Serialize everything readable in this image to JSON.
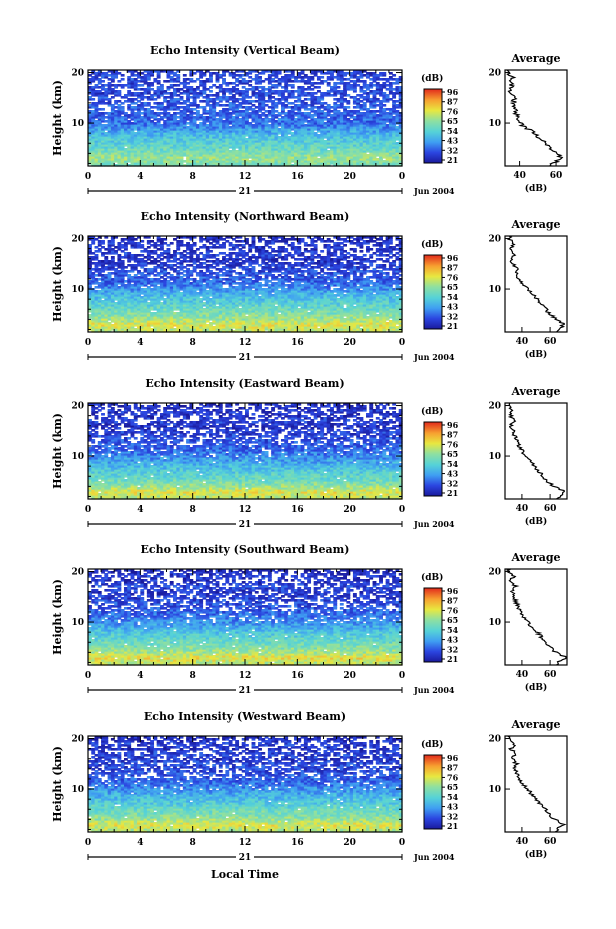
{
  "chart_data": [
    {
      "type": "heatmap",
      "title": "Echo Intensity (Vertical Beam)",
      "ylabel": "Height (km)",
      "x_ticks": [
        "0",
        "4",
        "8",
        "12",
        "16",
        "20",
        "0"
      ],
      "y_ticks": [
        "20",
        "10"
      ],
      "xlim": [
        0,
        24
      ],
      "ylim": [
        1.5,
        20.5
      ],
      "date_day": "21",
      "date_month_year": "Jun 2004",
      "colorbar": {
        "label": "(dB)",
        "ticks": [
          "96",
          "87",
          "76",
          "65",
          "54",
          "43",
          "32",
          "21"
        ],
        "range": [
          21,
          96
        ]
      },
      "profile": {
        "title": "Average",
        "xlabel": "(dB)",
        "x_ticks": [
          "40",
          "60"
        ],
        "xlim": [
          32,
          66
        ],
        "y_ticks": [
          "20",
          "10"
        ],
        "heights": [
          2,
          3,
          4,
          5,
          6,
          7,
          8,
          9,
          10,
          11,
          12,
          13,
          14,
          15,
          16,
          17,
          18,
          19,
          20
        ],
        "values": [
          58,
          63,
          60,
          56,
          54,
          51,
          48,
          44,
          40,
          39,
          38,
          38,
          37,
          37,
          35,
          36,
          35,
          36,
          34
        ]
      }
    },
    {
      "type": "heatmap",
      "title": "Echo Intensity (Northward Beam)",
      "ylabel": "Height (km)",
      "x_ticks": [
        "0",
        "4",
        "8",
        "12",
        "16",
        "20",
        "0"
      ],
      "y_ticks": [
        "20",
        "10"
      ],
      "xlim": [
        0,
        24
      ],
      "ylim": [
        1.5,
        20.5
      ],
      "date_day": "21",
      "date_month_year": "Jun 2004",
      "colorbar": {
        "label": "(dB)",
        "ticks": [
          "96",
          "87",
          "76",
          "65",
          "54",
          "43",
          "32",
          "21"
        ],
        "range": [
          21,
          96
        ]
      },
      "profile": {
        "title": "Average",
        "xlabel": "(dB)",
        "x_ticks": [
          "40",
          "60"
        ],
        "xlim": [
          28,
          72
        ],
        "y_ticks": [
          "20",
          "10"
        ],
        "heights": [
          2,
          3,
          4,
          5,
          6,
          7,
          8,
          9,
          10,
          11,
          12,
          13,
          14,
          15,
          16,
          17,
          18,
          19,
          20
        ],
        "values": [
          66,
          70,
          64,
          60,
          57,
          54,
          51,
          48,
          44,
          40,
          38,
          37,
          36,
          34,
          32,
          35,
          32,
          34,
          31
        ]
      }
    },
    {
      "type": "heatmap",
      "title": "Echo Intensity (Eastward Beam)",
      "ylabel": "Height (km)",
      "x_ticks": [
        "0",
        "4",
        "8",
        "12",
        "16",
        "20",
        "0"
      ],
      "y_ticks": [
        "20",
        "10"
      ],
      "xlim": [
        0,
        24
      ],
      "ylim": [
        1.5,
        20.5
      ],
      "date_day": "21",
      "date_month_year": "Jun 2004",
      "colorbar": {
        "label": "(dB)",
        "ticks": [
          "96",
          "87",
          "76",
          "65",
          "54",
          "43",
          "32",
          "21"
        ],
        "range": [
          21,
          96
        ]
      },
      "profile": {
        "title": "Average",
        "xlabel": "(dB)",
        "x_ticks": [
          "40",
          "60"
        ],
        "xlim": [
          28,
          72
        ],
        "y_ticks": [
          "20",
          "10"
        ],
        "heights": [
          2,
          3,
          4,
          5,
          6,
          7,
          8,
          9,
          10,
          11,
          12,
          13,
          14,
          15,
          16,
          17,
          18,
          19,
          20
        ],
        "values": [
          66,
          70,
          63,
          58,
          55,
          52,
          49,
          46,
          43,
          40,
          38,
          37,
          35,
          34,
          32,
          35,
          32,
          33,
          31
        ]
      }
    },
    {
      "type": "heatmap",
      "title": "Echo Intensity (Southward Beam)",
      "ylabel": "Height (km)",
      "x_ticks": [
        "0",
        "4",
        "8",
        "12",
        "16",
        "20",
        "0"
      ],
      "y_ticks": [
        "20",
        "10"
      ],
      "xlim": [
        0,
        24
      ],
      "ylim": [
        1.5,
        20.5
      ],
      "date_day": "21",
      "date_month_year": "Jun 2004",
      "colorbar": {
        "label": "(dB)",
        "ticks": [
          "96",
          "87",
          "76",
          "65",
          "54",
          "43",
          "32",
          "21"
        ],
        "range": [
          21,
          96
        ]
      },
      "profile": {
        "title": "Average",
        "xlabel": "(dB)",
        "x_ticks": [
          "40",
          "60"
        ],
        "xlim": [
          28,
          72
        ],
        "y_ticks": [
          "20",
          "10"
        ],
        "heights": [
          2,
          3,
          4,
          5,
          6,
          7,
          8,
          9,
          10,
          11,
          12,
          13,
          14,
          15,
          16,
          17,
          18,
          19,
          20
        ],
        "values": [
          66,
          71,
          64,
          60,
          57,
          54,
          51,
          47,
          44,
          41,
          39,
          37,
          36,
          34,
          33,
          36,
          32,
          34,
          31
        ]
      }
    },
    {
      "type": "heatmap",
      "title": "Echo Intensity (Westward Beam)",
      "ylabel": "Height (km)",
      "xlabel": "Local Time",
      "x_ticks": [
        "0",
        "4",
        "8",
        "12",
        "16",
        "20",
        "0"
      ],
      "y_ticks": [
        "20",
        "10"
      ],
      "xlim": [
        0,
        24
      ],
      "ylim": [
        1.5,
        20.5
      ],
      "date_day": "21",
      "date_month_year": "Jun 2004",
      "colorbar": {
        "label": "(dB)",
        "ticks": [
          "96",
          "87",
          "76",
          "65",
          "54",
          "43",
          "32",
          "21"
        ],
        "range": [
          21,
          96
        ]
      },
      "profile": {
        "title": "Average",
        "xlabel": "(dB)",
        "x_ticks": [
          "40",
          "60"
        ],
        "xlim": [
          28,
          72
        ],
        "y_ticks": [
          "20",
          "10"
        ],
        "heights": [
          2,
          3,
          4,
          5,
          6,
          7,
          8,
          9,
          10,
          11,
          12,
          13,
          14,
          15,
          16,
          17,
          18,
          19,
          20
        ],
        "values": [
          65,
          70,
          63,
          59,
          57,
          53,
          50,
          47,
          44,
          41,
          38,
          37,
          35,
          36,
          33,
          36,
          32,
          35,
          31
        ]
      }
    }
  ]
}
